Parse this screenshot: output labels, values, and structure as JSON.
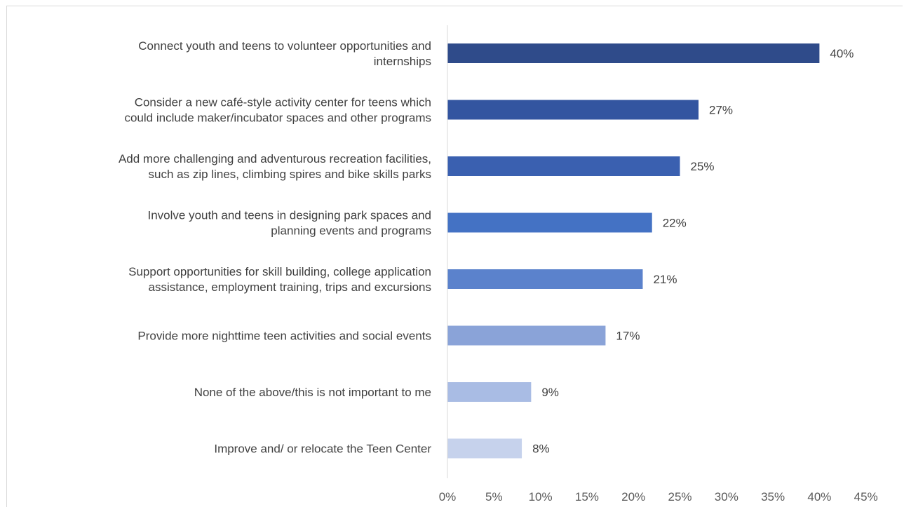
{
  "chart_data": {
    "type": "bar",
    "orientation": "horizontal",
    "categories": [
      [
        "Connect youth and teens to volunteer opportunities and",
        "internships"
      ],
      [
        "Consider a new café-style activity center for teens which",
        "could include maker/incubator spaces and other programs"
      ],
      [
        "Add more challenging and adventurous recreation facilities,",
        "such as zip lines, climbing spires and bike skills parks"
      ],
      [
        "Involve youth and teens in designing park spaces and",
        "planning events and programs"
      ],
      [
        "Support opportunities for skill building, college application",
        "assistance, employment training, trips and excursions"
      ],
      [
        "Provide more nighttime teen activities and social events"
      ],
      [
        "None of the above/this is not important to me"
      ],
      [
        "Improve and/ or relocate the Teen Center"
      ]
    ],
    "values": [
      40,
      27,
      25,
      22,
      21,
      17,
      9,
      8
    ],
    "data_labels": [
      "40%",
      "27%",
      "25%",
      "22%",
      "21%",
      "17%",
      "9%",
      "8%"
    ],
    "bar_colors": [
      "#2f4b8a",
      "#3355a0",
      "#3a60b0",
      "#4472c4",
      "#5b82cc",
      "#8aa3d8",
      "#a9bce4",
      "#c6d2ec"
    ],
    "x_ticks": [
      "0%",
      "5%",
      "10%",
      "15%",
      "20%",
      "25%",
      "30%",
      "35%",
      "40%",
      "45%"
    ],
    "xlim": [
      0,
      45
    ],
    "title": "",
    "xlabel": "",
    "ylabel": "",
    "grid": false,
    "legend": "none",
    "axis_color": "#d9d9d9"
  }
}
